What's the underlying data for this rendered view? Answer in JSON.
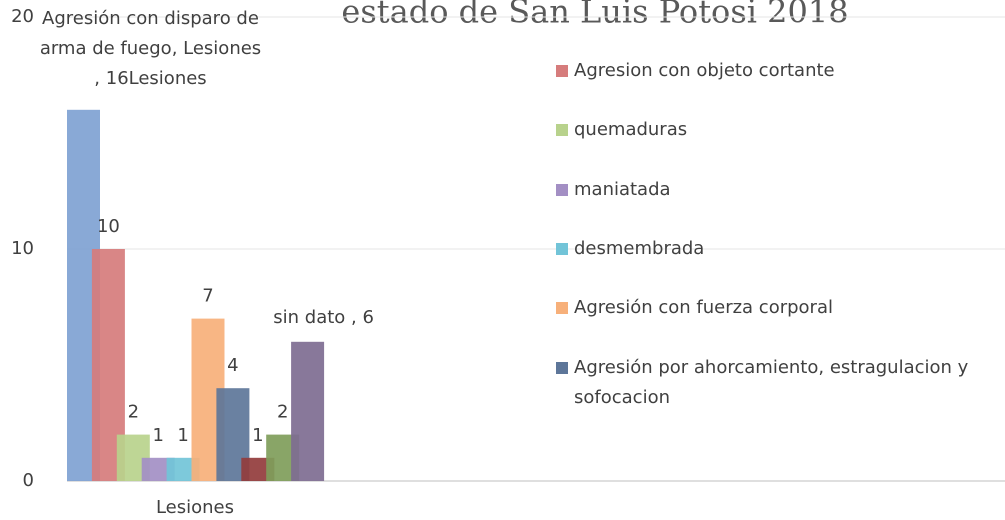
{
  "chart_data": {
    "type": "bar",
    "title": "estado de San Luis Potosi 2018",
    "categories": [
      "Lesiones"
    ],
    "ylim": [
      0,
      20
    ],
    "yticks": [
      0,
      10,
      20
    ],
    "grid": true,
    "series": [
      {
        "color": "#7fa2d2",
        "values": [
          16
        ],
        "value_labels": [
          "Agresión con disparo de arma de fuego, Lesiones , 16Lesiones"
        ]
      },
      {
        "name": "Agresion con objeto cortante",
        "color": "#d67c7c",
        "values": [
          10
        ]
      },
      {
        "name": "quemaduras",
        "color": "#b8d28c",
        "values": [
          2
        ]
      },
      {
        "name": "maniatada",
        "color": "#a38fc4",
        "values": [
          1
        ]
      },
      {
        "name": "desmembrada",
        "color": "#72c4d8",
        "values": [
          1
        ]
      },
      {
        "name": "Agresión con fuerza corporal",
        "color": "#f7b07a",
        "values": [
          7
        ]
      },
      {
        "name": "Agresión por ahorcamiento, estragulacion y sofocacion",
        "color": "#5d7699",
        "values": [
          4
        ]
      },
      {
        "color": "#923c3c",
        "values": [
          1
        ]
      },
      {
        "color": "#7f9d5a",
        "values": [
          2
        ]
      },
      {
        "color": "#7e6c91",
        "values": [
          6
        ],
        "value_labels": [
          "sin dato , 6"
        ]
      }
    ]
  }
}
